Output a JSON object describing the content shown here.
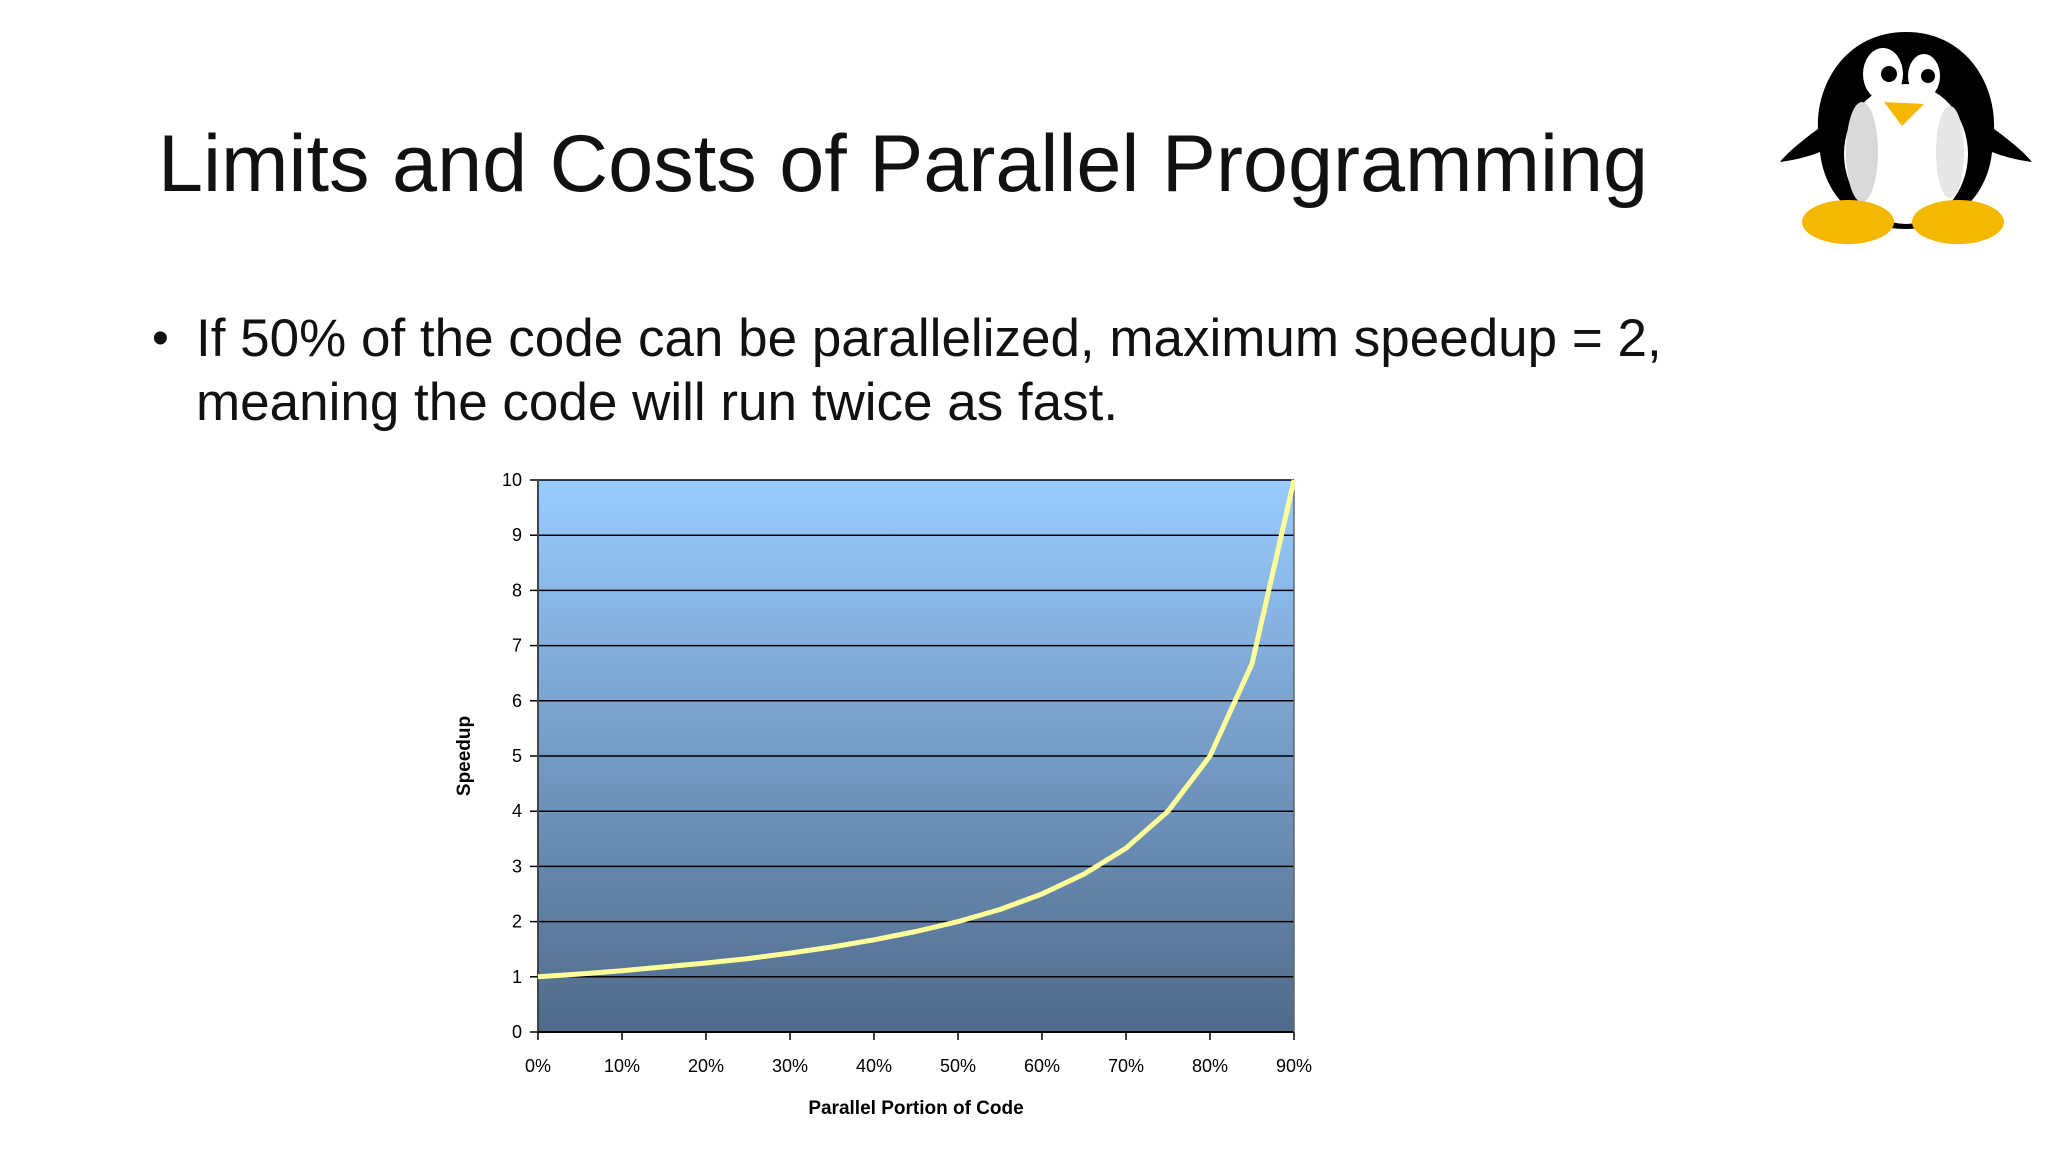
{
  "slide": {
    "title": "Limits and Costs of Parallel Programming",
    "bullets": [
      "If 50% of the code can be parallelized, maximum speedup = 2, meaning the code will run twice as fast."
    ]
  },
  "logo": {
    "icon": "penguin-icon",
    "colors": {
      "body": "#000000",
      "belly": "#ffffff",
      "beak": "#f5b800",
      "feet": "#f5b800"
    }
  },
  "chart_data": {
    "type": "line",
    "title": "",
    "xlabel": "Parallel Portion of Code",
    "ylabel": "Speedup",
    "x_ticks": [
      "0%",
      "10%",
      "20%",
      "30%",
      "40%",
      "50%",
      "60%",
      "70%",
      "80%",
      "90%"
    ],
    "y_ticks": [
      "0",
      "1",
      "2",
      "3",
      "4",
      "5",
      "6",
      "7",
      "8",
      "9",
      "10"
    ],
    "xlim": [
      0,
      90
    ],
    "ylim": [
      0,
      10
    ],
    "grid": true,
    "legend": "none",
    "colors": {
      "line": "#ffff99",
      "bg_top": "#99ccff",
      "bg_bottom": "#4f6a8a",
      "grid": "#000000"
    },
    "series": [
      {
        "x": [
          0,
          5,
          10,
          15,
          20,
          25,
          30,
          35,
          40,
          45,
          50,
          55,
          60,
          65,
          70,
          75,
          80,
          85,
          90
        ],
        "values": [
          1.0,
          1.05,
          1.11,
          1.18,
          1.25,
          1.33,
          1.43,
          1.54,
          1.67,
          1.82,
          2.0,
          2.22,
          2.5,
          2.86,
          3.33,
          4.0,
          5.0,
          6.67,
          10.0
        ]
      }
    ]
  }
}
